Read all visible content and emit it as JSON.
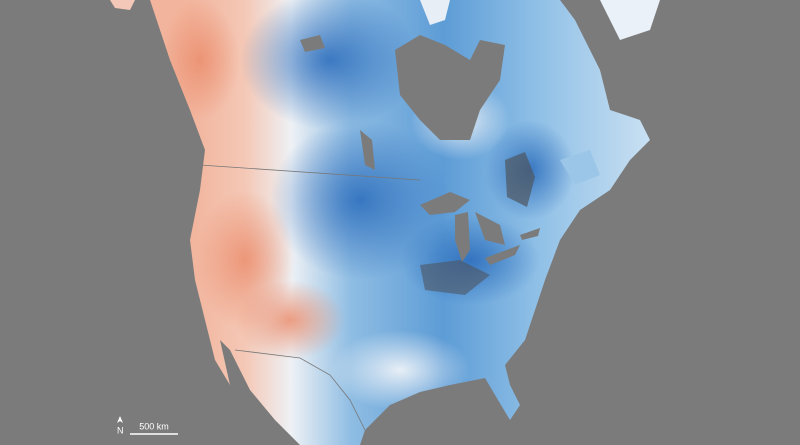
{
  "map": {
    "north_label": "N",
    "scale_label": "500 km"
  }
}
